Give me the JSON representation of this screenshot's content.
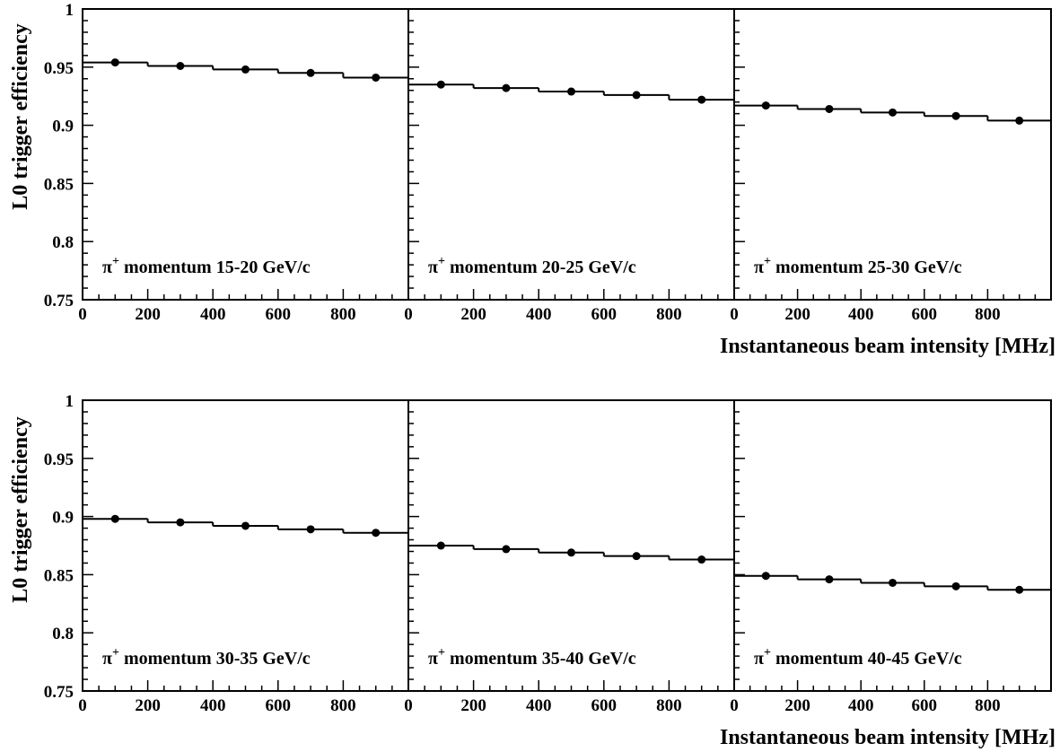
{
  "figure": {
    "ylabel": "L0 trigger efficiency",
    "xlabel": "Instantaneous beam intensity [MHz]"
  },
  "chart_data": [
    {
      "type": "step",
      "annotation": "momentum 15-20 GeV/c",
      "particle": "π",
      "particle_charge": "+",
      "bin_edges": [
        0,
        200,
        400,
        600,
        800,
        1000
      ],
      "x": [
        100,
        300,
        500,
        700,
        900
      ],
      "y": [
        0.954,
        0.951,
        0.948,
        0.945,
        0.941
      ],
      "yerr": [
        0.001,
        0.001,
        0.0015,
        0.0015,
        0.0025
      ],
      "xlim": [
        0,
        1000
      ],
      "ylim": [
        0.75,
        1
      ],
      "xticks": [
        "0",
        "200",
        "400",
        "600",
        "800"
      ],
      "yticks": [
        "0.75",
        "0.8",
        "0.85",
        "0.9",
        "0.95",
        "1"
      ]
    },
    {
      "type": "step",
      "annotation": "momentum 20-25 GeV/c",
      "particle": "π",
      "particle_charge": "+",
      "bin_edges": [
        0,
        200,
        400,
        600,
        800,
        1000
      ],
      "x": [
        100,
        300,
        500,
        700,
        900
      ],
      "y": [
        0.935,
        0.932,
        0.929,
        0.926,
        0.922
      ],
      "yerr": [
        0.001,
        0.001,
        0.0015,
        0.0015,
        0.0025
      ],
      "xlim": [
        0,
        1000
      ],
      "ylim": [
        0.75,
        1
      ],
      "xticks": [
        "0",
        "200",
        "400",
        "600",
        "800"
      ]
    },
    {
      "type": "step",
      "annotation": "momentum 25-30 GeV/c",
      "particle": "π",
      "particle_charge": "+",
      "bin_edges": [
        0,
        200,
        400,
        600,
        800,
        1000
      ],
      "x": [
        100,
        300,
        500,
        700,
        900
      ],
      "y": [
        0.917,
        0.914,
        0.911,
        0.908,
        0.904
      ],
      "yerr": [
        0.001,
        0.001,
        0.0015,
        0.0015,
        0.0025
      ],
      "xlim": [
        0,
        1000
      ],
      "ylim": [
        0.75,
        1
      ],
      "xticks": [
        "0",
        "200",
        "400",
        "600",
        "800"
      ]
    },
    {
      "type": "step",
      "annotation": "momentum 30-35 GeV/c",
      "particle": "π",
      "particle_charge": "+",
      "bin_edges": [
        0,
        200,
        400,
        600,
        800,
        1000
      ],
      "x": [
        100,
        300,
        500,
        700,
        900
      ],
      "y": [
        0.898,
        0.895,
        0.892,
        0.889,
        0.886
      ],
      "yerr": [
        0.001,
        0.001,
        0.0015,
        0.0015,
        0.003
      ],
      "xlim": [
        0,
        1000
      ],
      "ylim": [
        0.75,
        1
      ],
      "xticks": [
        "0",
        "200",
        "400",
        "600",
        "800"
      ],
      "yticks": [
        "0.75",
        "0.8",
        "0.85",
        "0.9",
        "0.95",
        "1"
      ]
    },
    {
      "type": "step",
      "annotation": "momentum 35-40 GeV/c",
      "particle": "π",
      "particle_charge": "+",
      "bin_edges": [
        0,
        200,
        400,
        600,
        800,
        1000
      ],
      "x": [
        100,
        300,
        500,
        700,
        900
      ],
      "y": [
        0.875,
        0.872,
        0.869,
        0.866,
        0.863
      ],
      "yerr": [
        0.001,
        0.0015,
        0.002,
        0.0025,
        0.003
      ],
      "xlim": [
        0,
        1000
      ],
      "ylim": [
        0.75,
        1
      ],
      "xticks": [
        "0",
        "200",
        "400",
        "600",
        "800"
      ]
    },
    {
      "type": "step",
      "annotation": "momentum 40-45 GeV/c",
      "particle": "π",
      "particle_charge": "+",
      "bin_edges": [
        0,
        200,
        400,
        600,
        800,
        1000
      ],
      "x": [
        100,
        300,
        500,
        700,
        900
      ],
      "y": [
        0.849,
        0.846,
        0.843,
        0.84,
        0.837
      ],
      "yerr": [
        0.001,
        0.0015,
        0.002,
        0.0025,
        0.003
      ],
      "xlim": [
        0,
        1000
      ],
      "ylim": [
        0.75,
        1
      ],
      "xticks": [
        "0",
        "200",
        "400",
        "600",
        "800"
      ]
    }
  ]
}
